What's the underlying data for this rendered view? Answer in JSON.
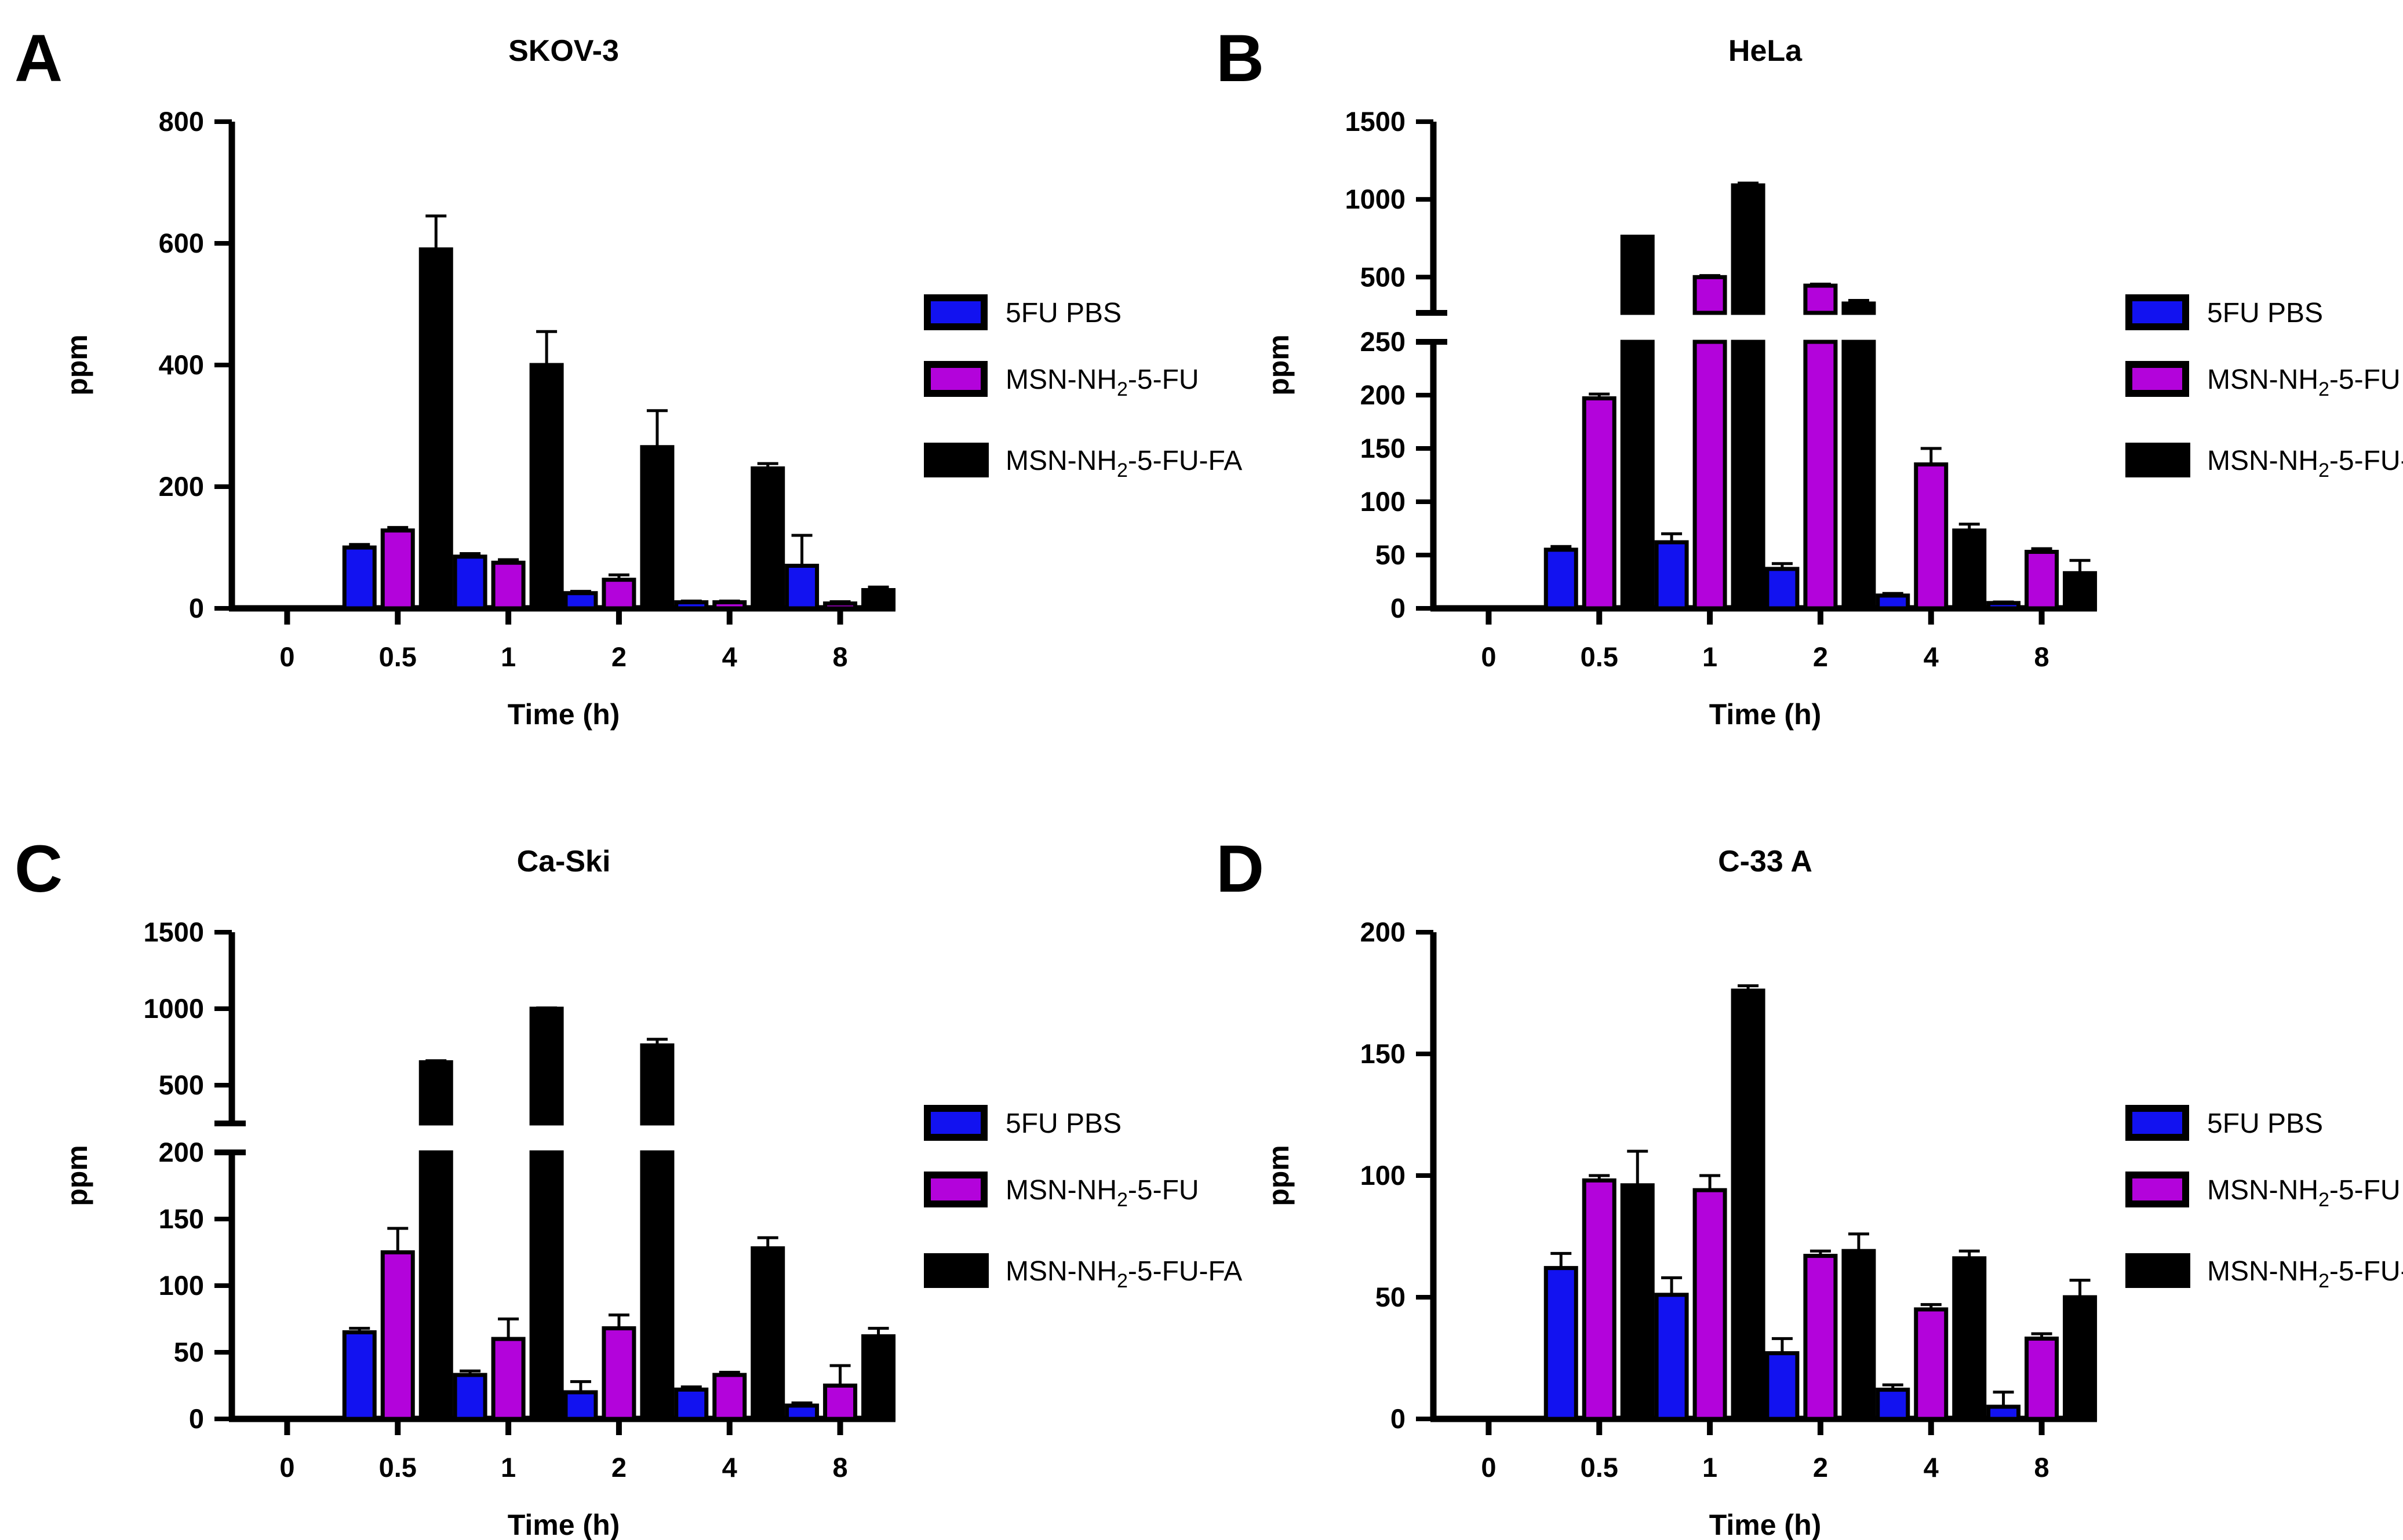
{
  "figure": {
    "background": "#ffffff",
    "xlabel": "Time (h)",
    "ylabel": "ppm"
  },
  "colors": {
    "blue": "#1212F0",
    "purple": "#B303DB",
    "black": "#000000",
    "bar_border": "#000000",
    "axis": "#000000"
  },
  "legend_labels": [
    [
      {
        "t": "5FU PBS"
      }
    ],
    [
      {
        "t": "MSN-NH"
      },
      {
        "t": "2",
        "sub": true
      },
      {
        "t": "-5-FU"
      }
    ],
    [
      {
        "t": "MSN-NH"
      },
      {
        "t": "2",
        "sub": true
      },
      {
        "t": "-5-FU-FA"
      }
    ]
  ],
  "series_color_keys": [
    "blue",
    "purple",
    "black"
  ],
  "chart_data": [
    {
      "type": "bar",
      "panel": "A",
      "title": "SKOV-3",
      "xlabel": "Time (h)",
      "ylabel": "ppm",
      "categories": [
        "0",
        "0.5",
        "1",
        "2",
        "4",
        "8"
      ],
      "axis": {
        "kind": "linear",
        "ylim": [
          0,
          800
        ],
        "yticks": [
          0,
          200,
          400,
          600,
          800
        ]
      },
      "legend_position": "right",
      "grid": false,
      "series": [
        {
          "name": "5FU PBS",
          "color_key": "blue",
          "values": [
            0,
            100,
            85,
            25,
            10,
            70
          ],
          "errors": [
            0,
            5,
            5,
            3,
            2,
            50
          ]
        },
        {
          "name": "MSN-NH2-5-FU",
          "color_key": "purple",
          "values": [
            0,
            128,
            75,
            47,
            10,
            8
          ],
          "errors": [
            0,
            5,
            5,
            8,
            2,
            3
          ]
        },
        {
          "name": "MSN-NH2-5-FU-FA",
          "color_key": "black",
          "values": [
            0,
            590,
            400,
            265,
            230,
            30
          ],
          "errors": [
            0,
            55,
            55,
            60,
            8,
            5
          ]
        }
      ]
    },
    {
      "type": "bar",
      "panel": "B",
      "title": "HeLa",
      "xlabel": "Time (h)",
      "ylabel": "ppm",
      "categories": [
        "0",
        "0.5",
        "1",
        "2",
        "4",
        "8"
      ],
      "axis": {
        "kind": "broken",
        "lower": {
          "max": 250,
          "ticks": [
            0,
            50,
            100,
            150,
            200,
            250
          ]
        },
        "upper": {
          "start": 270,
          "max": 1500,
          "ticks": [
            500,
            1000,
            1500
          ]
        }
      },
      "legend_position": "right",
      "grid": false,
      "series": [
        {
          "name": "5FU PBS",
          "color_key": "blue",
          "values": [
            0,
            55,
            62,
            37,
            12,
            5
          ],
          "errors": [
            0,
            3,
            8,
            5,
            2,
            1
          ]
        },
        {
          "name": "MSN-NH2-5-FU",
          "color_key": "purple",
          "values": [
            0,
            197,
            500,
            445,
            135,
            53
          ],
          "errors": [
            0,
            4,
            10,
            10,
            15,
            3
          ]
        },
        {
          "name": "MSN-NH2-5-FU-FA",
          "color_key": "black",
          "values": [
            0,
            760,
            1090,
            330,
            73,
            33
          ],
          "errors": [
            0,
            0,
            15,
            20,
            6,
            12
          ]
        }
      ]
    },
    {
      "type": "bar",
      "panel": "C",
      "title": "Ca-Ski",
      "xlabel": "Time (h)",
      "ylabel": "ppm",
      "categories": [
        "0",
        "0.5",
        "1",
        "2",
        "4",
        "8"
      ],
      "axis": {
        "kind": "broken",
        "lower": {
          "max": 200,
          "ticks": [
            0,
            50,
            100,
            150,
            200
          ]
        },
        "upper": {
          "start": 250,
          "max": 1500,
          "ticks": [
            500,
            1000,
            1500
          ]
        }
      },
      "legend_position": "right",
      "grid": false,
      "series": [
        {
          "name": "5FU PBS",
          "color_key": "blue",
          "values": [
            0,
            65,
            33,
            20,
            22,
            10
          ],
          "errors": [
            0,
            3,
            3,
            8,
            2,
            2
          ]
        },
        {
          "name": "MSN-NH2-5-FU",
          "color_key": "purple",
          "values": [
            0,
            125,
            60,
            68,
            33,
            25
          ],
          "errors": [
            0,
            18,
            15,
            10,
            2,
            15
          ]
        },
        {
          "name": "MSN-NH2-5-FU-FA",
          "color_key": "black",
          "values": [
            0,
            650,
            1000,
            760,
            128,
            62
          ],
          "errors": [
            0,
            10,
            5,
            40,
            8,
            6
          ]
        }
      ]
    },
    {
      "type": "bar",
      "panel": "D",
      "title": "C-33 A",
      "xlabel": "Time (h)",
      "ylabel": "ppm",
      "categories": [
        "0",
        "0.5",
        "1",
        "2",
        "4",
        "8"
      ],
      "axis": {
        "kind": "linear",
        "ylim": [
          0,
          200
        ],
        "yticks": [
          0,
          50,
          100,
          150,
          200
        ]
      },
      "legend_position": "right",
      "grid": false,
      "series": [
        {
          "name": "5FU PBS",
          "color_key": "blue",
          "values": [
            0,
            62,
            51,
            27,
            12,
            5
          ],
          "errors": [
            0,
            6,
            7,
            6,
            2,
            6
          ]
        },
        {
          "name": "MSN-NH2-5-FU",
          "color_key": "purple",
          "values": [
            0,
            98,
            94,
            67,
            45,
            33
          ],
          "errors": [
            0,
            2,
            6,
            2,
            2,
            2
          ]
        },
        {
          "name": "MSN-NH2-5-FU-FA",
          "color_key": "black",
          "values": [
            0,
            96,
            176,
            69,
            66,
            50
          ],
          "errors": [
            0,
            14,
            2,
            7,
            3,
            7
          ]
        }
      ]
    }
  ]
}
